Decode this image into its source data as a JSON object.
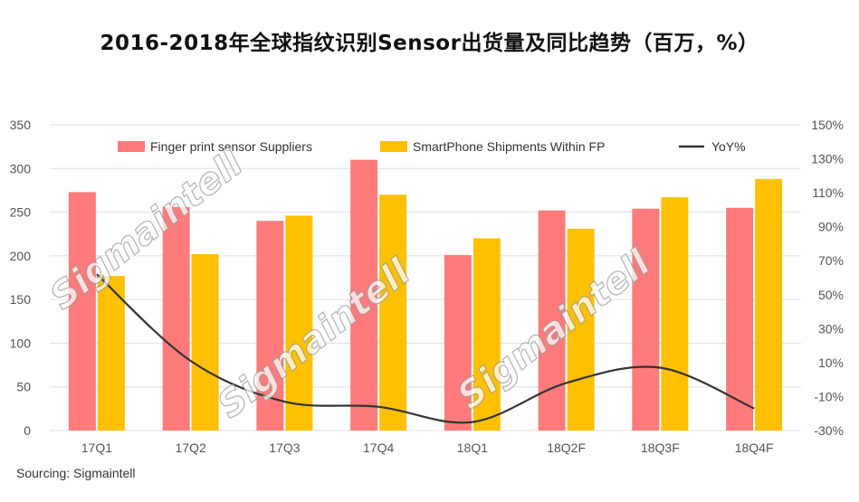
{
  "title": "2016-2018年全球指纹识别Sensor出货量及同比趋势（百万，%）",
  "source": "Sourcing: Sigmaintell",
  "watermark": "Sigmaintell",
  "colors": {
    "fp_sensor": "#FF7B7B",
    "smartphone": "#FFC000",
    "yoy": "#333333",
    "grid": "#E0E0E0"
  },
  "chart_data": {
    "type": "bar",
    "categories": [
      "17Q1",
      "17Q2",
      "17Q3",
      "17Q4",
      "18Q1",
      "18Q2F",
      "18Q3F",
      "18Q4F"
    ],
    "series": [
      {
        "name": "Finger print sensor Suppliers",
        "type": "bar",
        "axis": "left",
        "values": [
          273,
          256,
          240,
          310,
          201,
          252,
          254,
          255
        ]
      },
      {
        "name": "SmartPhone Shipments Within FP",
        "type": "bar",
        "axis": "left",
        "values": [
          177,
          202,
          246,
          270,
          220,
          231,
          267,
          288
        ]
      },
      {
        "name": "YoY%",
        "type": "line",
        "axis": "right",
        "values": [
          62,
          11,
          -13,
          -16,
          -25,
          -2,
          7,
          -17
        ]
      }
    ],
    "y_left": {
      "min": 0,
      "max": 350,
      "ticks": [
        0,
        50,
        100,
        150,
        200,
        250,
        300,
        350
      ]
    },
    "y_right": {
      "min": -30,
      "max": 150,
      "ticks": [
        "-30%",
        "-10%",
        "10%",
        "30%",
        "50%",
        "70%",
        "90%",
        "110%",
        "130%",
        "150%"
      ]
    },
    "legend_position": "top",
    "grid": true
  }
}
